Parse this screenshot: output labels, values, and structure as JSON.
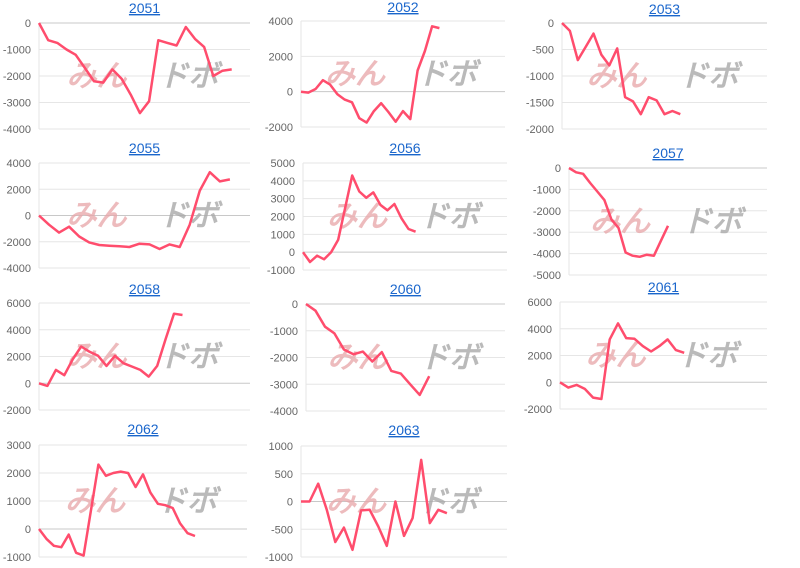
{
  "watermark": {
    "part1": "みん",
    "part2": "ドボ"
  },
  "colors": {
    "line": "#ff4d6d",
    "grid": "#e6e6e6",
    "zero_line": "#c8c8c8",
    "title_link": "#1a66cc"
  },
  "chart_data": [
    {
      "type": "line",
      "title": "2051",
      "ylim": [
        -4000,
        0
      ],
      "yticks": [
        0,
        -1000,
        -2000,
        -3000,
        -4000
      ],
      "grid": true,
      "values": [
        0,
        -650,
        -750,
        -1000,
        -1200,
        -1700,
        -2200,
        -2250,
        -1750,
        -2100,
        -2700,
        -3400,
        -2950,
        -650,
        -750,
        -850,
        -150,
        -600,
        -900,
        -2000,
        -1800,
        -1750
      ]
    },
    {
      "type": "line",
      "title": "2052",
      "ylim": [
        -2000,
        4000
      ],
      "yticks": [
        4000,
        2000,
        0,
        -2000
      ],
      "grid": true,
      "values": [
        0,
        -50,
        150,
        650,
        400,
        -150,
        -450,
        -600,
        -1500,
        -1750,
        -1100,
        -650,
        -1150,
        -1700,
        -1100,
        -1550,
        1200,
        2300,
        3700,
        3600
      ]
    },
    {
      "type": "line",
      "title": "2053",
      "ylim": [
        -2000,
        0
      ],
      "yticks": [
        0,
        -500,
        -1000,
        -1500,
        -2000
      ],
      "grid": true,
      "values": [
        0,
        -150,
        -700,
        -450,
        -200,
        -600,
        -800,
        -480,
        -1400,
        -1480,
        -1720,
        -1400,
        -1460,
        -1720,
        -1660,
        -1720
      ]
    },
    {
      "type": "line",
      "title": "2055",
      "ylim": [
        -4000,
        4000
      ],
      "yticks": [
        4000,
        2000,
        0,
        -2000,
        -4000
      ],
      "grid": true,
      "values": [
        0,
        -700,
        -1300,
        -850,
        -1600,
        -2050,
        -2250,
        -2300,
        -2350,
        -2400,
        -2150,
        -2200,
        -2550,
        -2200,
        -2400,
        -700,
        1900,
        3300,
        2600,
        2750
      ]
    },
    {
      "type": "line",
      "title": "2056",
      "ylim": [
        -1000,
        5000
      ],
      "yticks": [
        5000,
        4000,
        3000,
        2000,
        1000,
        0,
        -1000
      ],
      "grid": true,
      "values": [
        0,
        -550,
        -200,
        -400,
        0,
        700,
        2500,
        4300,
        3400,
        3050,
        3350,
        2650,
        2350,
        2700,
        1900,
        1300,
        1150
      ]
    },
    {
      "type": "line",
      "title": "2057",
      "ylim": [
        -5000,
        0
      ],
      "yticks": [
        0,
        -1000,
        -2000,
        -3000,
        -4000,
        -5000
      ],
      "grid": true,
      "values": [
        0,
        -200,
        -270,
        -700,
        -1100,
        -1500,
        -2400,
        -2800,
        -3950,
        -4100,
        -4150,
        -4050,
        -4100,
        -3400,
        -2700
      ]
    },
    {
      "type": "line",
      "title": "2058",
      "ylim": [
        -2000,
        6000
      ],
      "yticks": [
        6000,
        4000,
        2000,
        0,
        -2000
      ],
      "grid": true,
      "values": [
        0,
        -200,
        1000,
        600,
        1800,
        2750,
        2350,
        2050,
        1300,
        2050,
        1500,
        1250,
        1000,
        500,
        1300,
        3300,
        5200,
        5100
      ]
    },
    {
      "type": "line",
      "title": "2060",
      "ylim": [
        -4000,
        0
      ],
      "yticks": [
        0,
        -1000,
        -2000,
        -3000,
        -4000
      ],
      "grid": true,
      "values": [
        0,
        -250,
        -850,
        -1100,
        -1700,
        -1880,
        -1780,
        -2150,
        -1800,
        -2500,
        -2600,
        -3000,
        -3400,
        -2700
      ]
    },
    {
      "type": "line",
      "title": "2061",
      "ylim": [
        -2000,
        6000
      ],
      "yticks": [
        6000,
        4000,
        2000,
        0,
        -2000
      ],
      "grid": true,
      "values": [
        0,
        -400,
        -200,
        -500,
        -1150,
        -1250,
        3200,
        4400,
        3300,
        3250,
        2700,
        2300,
        2700,
        3200,
        2400,
        2200
      ]
    },
    {
      "type": "line",
      "title": "2062",
      "ylim": [
        -1000,
        3000
      ],
      "yticks": [
        3000,
        2000,
        1000,
        0,
        -1000
      ],
      "grid": true,
      "values": [
        0,
        -350,
        -600,
        -650,
        -200,
        -850,
        -950,
        675,
        2300,
        1900,
        2000,
        2050,
        2000,
        1500,
        1950,
        1300,
        900,
        850,
        750,
        200,
        -150,
        -250
      ]
    },
    {
      "type": "line",
      "title": "2063",
      "ylim": [
        -1000,
        1000
      ],
      "yticks": [
        1000,
        500,
        0,
        -500,
        -1000
      ],
      "grid": true,
      "values": [
        0,
        0,
        320,
        -150,
        -730,
        -470,
        -870,
        -160,
        -150,
        -450,
        -800,
        0,
        -620,
        -300,
        750,
        -390,
        -150,
        -210
      ]
    }
  ]
}
